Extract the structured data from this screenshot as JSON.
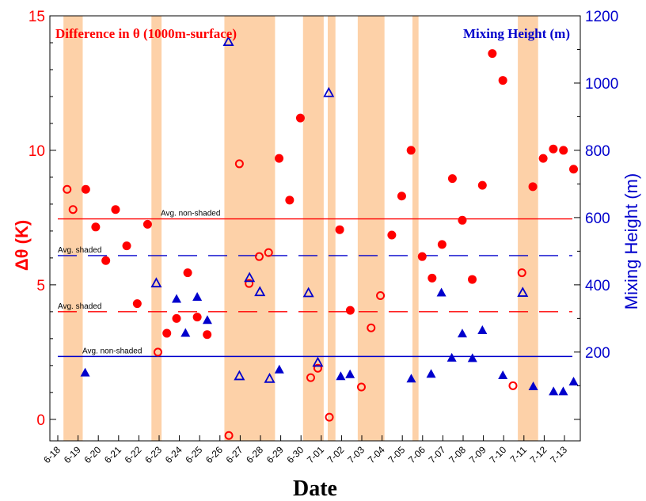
{
  "chart_data": {
    "type": "scatter",
    "xlabel": "Date",
    "x_categories": [
      "6-18",
      "6-19",
      "6-20",
      "6-21",
      "6-22",
      "6-23",
      "6-24",
      "6-25",
      "6-26",
      "6-27",
      "6-28",
      "6-29",
      "6-30",
      "7-01",
      "7-02",
      "7-03",
      "7-04",
      "7-05",
      "7-06",
      "7-07",
      "7-08",
      "7-09",
      "7-10",
      "7-11",
      "7-12",
      "7-13"
    ],
    "y_left": {
      "label": "Δθ (K)",
      "range": [
        -0.8,
        15
      ],
      "ticks": [
        "0",
        "5",
        "10",
        "15"
      ],
      "tick_values": [
        0,
        5,
        10,
        15
      ],
      "color": "#ff0000"
    },
    "y_right": {
      "label": "Mixing Height (m)",
      "range": [
        -64,
        1200
      ],
      "ticks": [
        "200",
        "400",
        "600",
        "800",
        "1000",
        "1200"
      ],
      "tick_values": [
        200,
        400,
        600,
        800,
        1000,
        1200
      ],
      "color": "#0000cc"
    },
    "legend": {
      "left_series": "Difference in θ (1000m-surface)",
      "right_series": "Mixing Height (m)"
    },
    "shaded_periods": [
      [
        0.28,
        1.23
      ],
      [
        4.62,
        5.12
      ],
      [
        8.22,
        10.72
      ],
      [
        12.1,
        13.12
      ],
      [
        13.32,
        13.7
      ],
      [
        14.8,
        16.12
      ],
      [
        17.5,
        17.8
      ],
      [
        22.7,
        23.7
      ]
    ],
    "reference_lines": [
      {
        "axis": "left",
        "value": 7.45,
        "style": "solid",
        "label": "Avg. non-shaded"
      },
      {
        "axis": "left",
        "value": 4.0,
        "style": "dashed",
        "label": "Avg. shaded"
      },
      {
        "axis": "right",
        "value": 487,
        "style": "dashed",
        "label": "Avg. shaded"
      },
      {
        "axis": "right",
        "value": 187,
        "style": "solid",
        "label": "Avg. non-shaded"
      }
    ],
    "series": [
      {
        "name": "Difference in θ (1000m-surface)",
        "axis": "left",
        "color": "#ff0000",
        "points": [
          [
            0.46,
            8.55,
            "open"
          ],
          [
            0.75,
            7.8,
            "open"
          ],
          [
            1.38,
            8.55,
            "filled"
          ],
          [
            1.87,
            7.15,
            "filled"
          ],
          [
            2.37,
            5.9,
            "filled"
          ],
          [
            2.85,
            7.8,
            "filled"
          ],
          [
            3.4,
            6.45,
            "filled"
          ],
          [
            3.92,
            4.3,
            "filled"
          ],
          [
            4.43,
            7.25,
            "filled"
          ],
          [
            4.94,
            2.5,
            "open"
          ],
          [
            5.38,
            3.2,
            "filled"
          ],
          [
            5.86,
            3.75,
            "filled"
          ],
          [
            6.41,
            5.45,
            "filled"
          ],
          [
            6.88,
            3.8,
            "filled"
          ],
          [
            7.37,
            3.15,
            "filled"
          ],
          [
            8.44,
            -0.6,
            "open"
          ],
          [
            8.96,
            9.5,
            "open"
          ],
          [
            9.44,
            5.05,
            "open"
          ],
          [
            9.94,
            6.05,
            "open"
          ],
          [
            10.4,
            6.2,
            "open"
          ],
          [
            10.92,
            9.7,
            "filled"
          ],
          [
            11.44,
            8.15,
            "filled"
          ],
          [
            11.97,
            11.2,
            "filled"
          ],
          [
            12.48,
            1.55,
            "open"
          ],
          [
            12.83,
            1.9,
            "open"
          ],
          [
            13.4,
            0.08,
            "open"
          ],
          [
            13.91,
            7.05,
            "filled"
          ],
          [
            14.43,
            4.05,
            "filled"
          ],
          [
            14.98,
            1.2,
            "open"
          ],
          [
            15.46,
            3.4,
            "open"
          ],
          [
            15.92,
            4.6,
            "open"
          ],
          [
            16.48,
            6.85,
            "filled"
          ],
          [
            16.97,
            8.3,
            "filled"
          ],
          [
            17.43,
            10.0,
            "filled"
          ],
          [
            17.98,
            6.05,
            "filled"
          ],
          [
            18.47,
            5.25,
            "filled"
          ],
          [
            18.96,
            6.5,
            "filled"
          ],
          [
            19.47,
            8.95,
            "filled"
          ],
          [
            19.96,
            7.4,
            "filled"
          ],
          [
            20.45,
            5.2,
            "filled"
          ],
          [
            20.95,
            8.7,
            "filled"
          ],
          [
            21.44,
            13.6,
            "filled"
          ],
          [
            21.96,
            12.6,
            "filled"
          ],
          [
            22.46,
            1.25,
            "open"
          ],
          [
            22.9,
            5.45,
            "open"
          ],
          [
            23.44,
            8.65,
            "filled"
          ],
          [
            23.95,
            9.7,
            "filled"
          ],
          [
            24.45,
            10.05,
            "filled"
          ],
          [
            24.95,
            10.0,
            "filled"
          ],
          [
            25.45,
            9.3,
            "filled"
          ]
        ]
      },
      {
        "name": "Mixing Height (m)",
        "axis": "right",
        "color": "#0000cc",
        "points": [
          [
            1.35,
            138,
            "filled"
          ],
          [
            4.86,
            404,
            "open"
          ],
          [
            5.86,
            357,
            "filled"
          ],
          [
            6.3,
            256,
            "filled"
          ],
          [
            6.88,
            363,
            "filled"
          ],
          [
            7.38,
            294,
            "filled"
          ],
          [
            8.42,
            1122,
            "open"
          ],
          [
            8.96,
            128,
            "open"
          ],
          [
            9.46,
            420,
            "open"
          ],
          [
            9.97,
            378,
            "open"
          ],
          [
            10.45,
            120,
            "open"
          ],
          [
            10.93,
            147,
            "filled"
          ],
          [
            12.37,
            375,
            "open"
          ],
          [
            12.83,
            168,
            "open"
          ],
          [
            13.37,
            970,
            "open"
          ],
          [
            13.96,
            127,
            "filled"
          ],
          [
            14.42,
            133,
            "filled"
          ],
          [
            17.44,
            120,
            "filled"
          ],
          [
            18.42,
            134,
            "filled"
          ],
          [
            18.93,
            376,
            "filled"
          ],
          [
            19.44,
            182,
            "filled"
          ],
          [
            19.96,
            254,
            "filled"
          ],
          [
            20.46,
            181,
            "filled"
          ],
          [
            20.95,
            264,
            "filled"
          ],
          [
            21.96,
            130,
            "filled"
          ],
          [
            22.94,
            376,
            "open"
          ],
          [
            23.46,
            97,
            "filled"
          ],
          [
            24.46,
            82,
            "filled"
          ],
          [
            24.94,
            82,
            "filled"
          ],
          [
            25.45,
            111,
            "filled"
          ]
        ]
      }
    ]
  }
}
